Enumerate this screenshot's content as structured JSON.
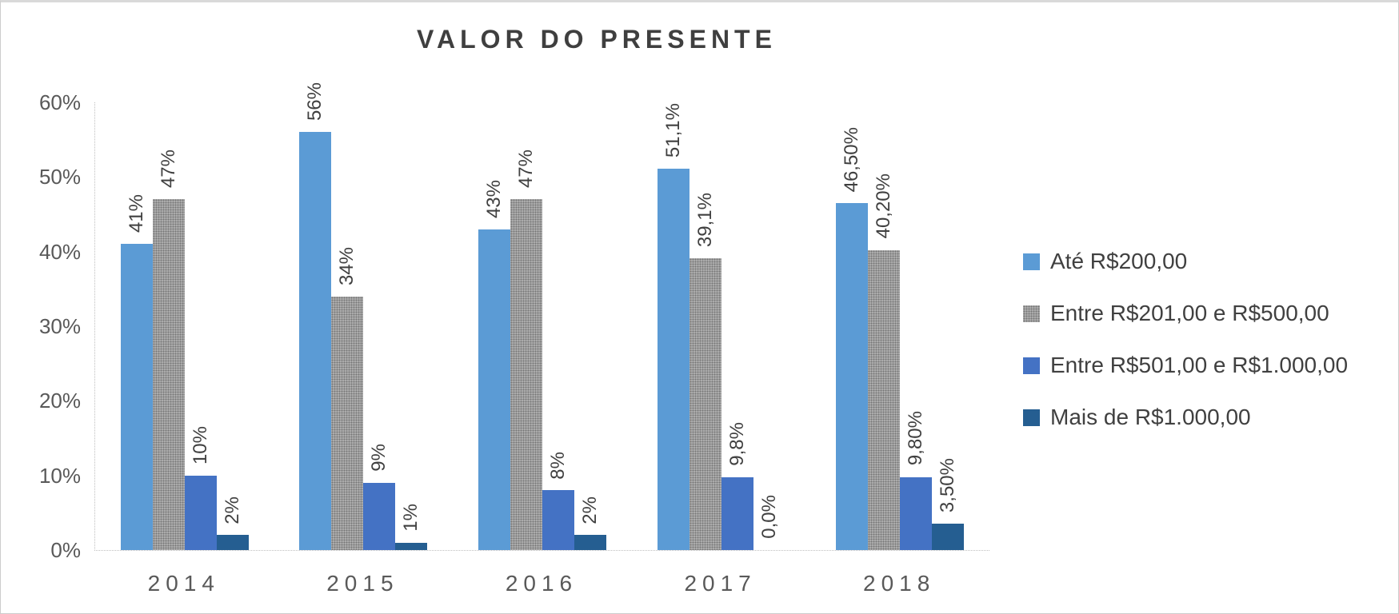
{
  "title": "VALOR DO PRESENTE",
  "chart_data": {
    "type": "bar",
    "title": "VALOR DO PRESENTE",
    "xlabel": "",
    "ylabel": "",
    "categories": [
      "2014",
      "2015",
      "2016",
      "2017",
      "2018"
    ],
    "series": [
      {
        "name": "Até R$200,00",
        "color": "#5B9BD5",
        "pattern": false,
        "values": [
          41,
          56,
          43,
          51.1,
          46.5
        ],
        "labels": [
          "41%",
          "56%",
          "43%",
          "51,1%",
          "46,50%"
        ]
      },
      {
        "name": "Entre R$201,00 e R$500,00",
        "color": "#ABABAB",
        "pattern": true,
        "values": [
          47,
          34,
          47,
          39.1,
          40.2
        ],
        "labels": [
          "47%",
          "34%",
          "47%",
          "39,1%",
          "40,20%"
        ]
      },
      {
        "name": "Entre R$501,00 e R$1.000,00",
        "color": "#4472C4",
        "pattern": false,
        "values": [
          10,
          9,
          8,
          9.8,
          9.8
        ],
        "labels": [
          "10%",
          "9%",
          "8%",
          "9,8%",
          "9,80%"
        ]
      },
      {
        "name": "Mais de R$1.000,00",
        "color": "#255E91",
        "pattern": false,
        "values": [
          2,
          1,
          2,
          0,
          3.5
        ],
        "labels": [
          "2%",
          "1%",
          "2%",
          "0,0%",
          "3,50%"
        ]
      }
    ],
    "ylim": [
      0,
      60
    ],
    "ytick_step": 10,
    "ytick_labels": [
      "0%",
      "10%",
      "20%",
      "30%",
      "40%",
      "50%",
      "60%"
    ],
    "grid": false,
    "legend_position": "right"
  }
}
